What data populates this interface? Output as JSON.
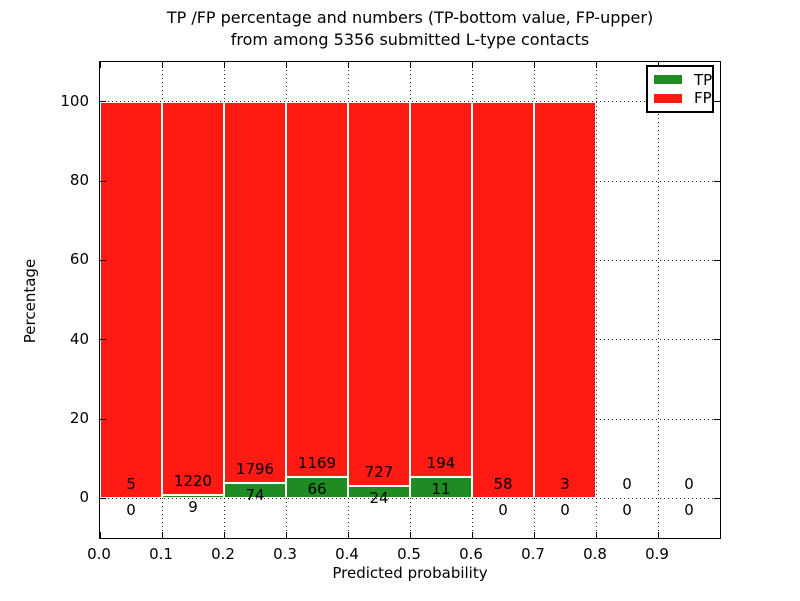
{
  "figure": {
    "title_line1": "TP /FP percentage and numbers (TP-bottom value, FP-upper)",
    "title_line2": "from among 5356 submitted L-type contacts"
  },
  "chart_data": {
    "type": "bar",
    "stacked": true,
    "normalized_to_percent": 100,
    "title": "TP /FP percentage and numbers (TP-bottom value, FP-upper)\nfrom among 5356 submitted L-type contacts",
    "total_contacts": 5356,
    "xlabel": "Predicted probability",
    "ylabel": "Percentage",
    "xlim": [
      0.0,
      1.0
    ],
    "ylim": [
      -10,
      110
    ],
    "xticks": [
      "0.0",
      "0.1",
      "0.2",
      "0.3",
      "0.4",
      "0.5",
      "0.6",
      "0.7",
      "0.8",
      "0.9"
    ],
    "yticks": [
      0,
      20,
      40,
      60,
      80,
      100
    ],
    "grid": "dotted",
    "bar_edge_color": "#ffffff",
    "legend": {
      "position": "upper right",
      "entries": [
        {
          "label": "TP",
          "color": "#1f8c23"
        },
        {
          "label": "FP",
          "color": "#ff1a14"
        }
      ]
    },
    "label_note": "TP count printed below stack boundary, FP count printed above it",
    "bins": [
      {
        "range": [
          0.0,
          0.1
        ],
        "tp": 0,
        "fp": 5
      },
      {
        "range": [
          0.1,
          0.2
        ],
        "tp": 9,
        "fp": 1220
      },
      {
        "range": [
          0.2,
          0.3
        ],
        "tp": 74,
        "fp": 1796
      },
      {
        "range": [
          0.3,
          0.4
        ],
        "tp": 66,
        "fp": 1169
      },
      {
        "range": [
          0.4,
          0.5
        ],
        "tp": 24,
        "fp": 727
      },
      {
        "range": [
          0.5,
          0.6
        ],
        "tp": 11,
        "fp": 194
      },
      {
        "range": [
          0.6,
          0.7
        ],
        "tp": 0,
        "fp": 58
      },
      {
        "range": [
          0.7,
          0.8
        ],
        "tp": 0,
        "fp": 3
      },
      {
        "range": [
          0.8,
          0.9
        ],
        "tp": 0,
        "fp": 0
      },
      {
        "range": [
          0.9,
          1.0
        ],
        "tp": 0,
        "fp": 0
      }
    ]
  }
}
